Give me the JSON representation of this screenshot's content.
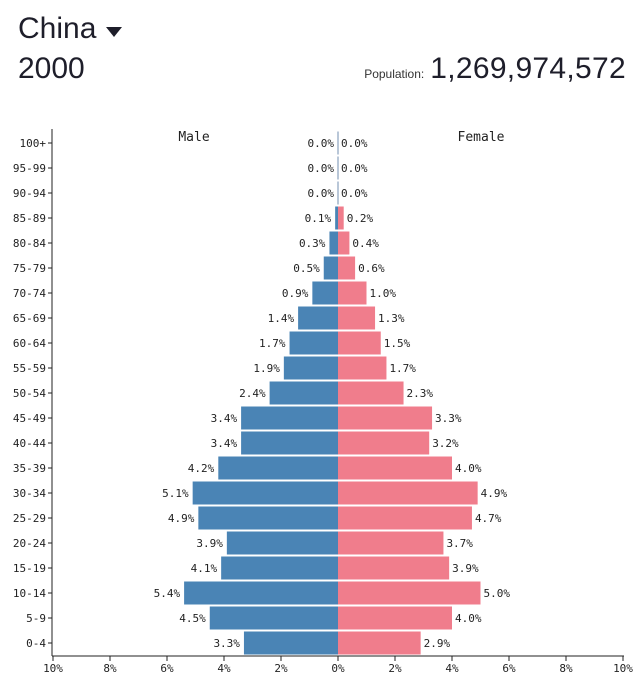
{
  "header": {
    "country": "China",
    "year": "2000",
    "population_label": "Population:",
    "population_value": "1,269,974,572"
  },
  "chart_data": {
    "type": "bar",
    "title": "",
    "xlabel": "",
    "ylabel": "",
    "series_labels": {
      "male": "Male",
      "female": "Female"
    },
    "categories": [
      "100+",
      "95-99",
      "90-94",
      "85-89",
      "80-84",
      "75-79",
      "70-74",
      "65-69",
      "60-64",
      "55-59",
      "50-54",
      "45-49",
      "40-44",
      "35-39",
      "30-34",
      "25-29",
      "20-24",
      "15-19",
      "10-14",
      "5-9",
      "0-4"
    ],
    "series": [
      {
        "name": "Male",
        "values": [
          0.0,
          0.0,
          0.0,
          0.1,
          0.3,
          0.5,
          0.9,
          1.4,
          1.7,
          1.9,
          2.4,
          3.4,
          3.4,
          4.2,
          5.1,
          4.9,
          3.9,
          4.1,
          5.4,
          4.5,
          3.3
        ],
        "color": "#4a84b5"
      },
      {
        "name": "Female",
        "values": [
          0.0,
          0.0,
          0.0,
          0.2,
          0.4,
          0.6,
          1.0,
          1.3,
          1.5,
          1.7,
          2.3,
          3.3,
          3.2,
          4.0,
          4.9,
          4.7,
          3.7,
          3.9,
          5.0,
          4.0,
          2.9
        ],
        "color": "#f07d8c"
      }
    ],
    "xticks": [
      "10%",
      "8%",
      "6%",
      "4%",
      "2%",
      "0%",
      "2%",
      "4%",
      "6%",
      "8%",
      "10%"
    ],
    "xlim": [
      -10,
      10
    ],
    "grid": false,
    "legend": "none"
  }
}
